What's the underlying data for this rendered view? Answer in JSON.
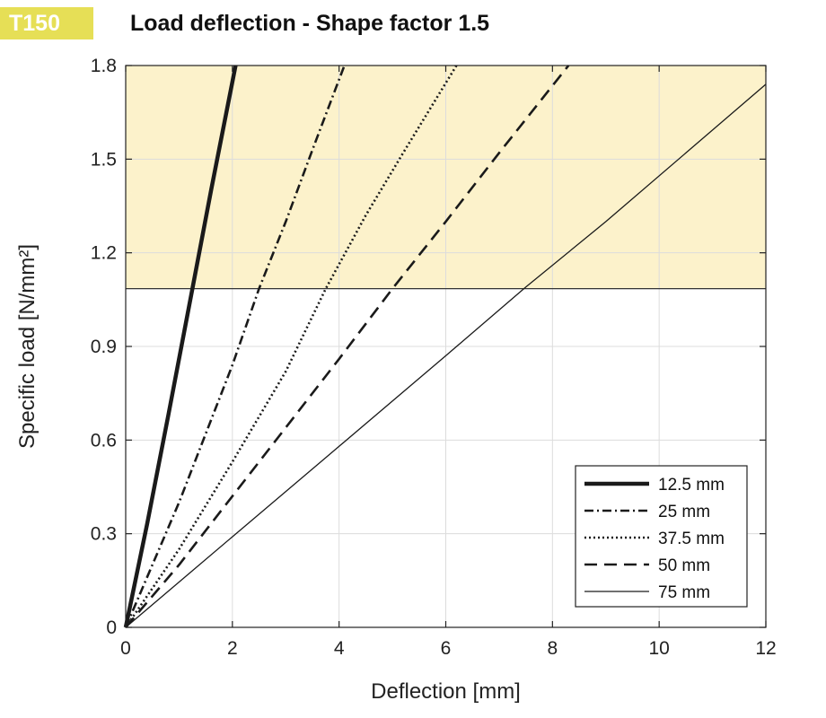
{
  "header": {
    "badge": "T150",
    "title": "Load deflection - Shape factor 1.5"
  },
  "chart_data": {
    "type": "line",
    "title": "Load deflection - Shape factor 1.5",
    "xlabel": "Deflection  [mm]",
    "ylabel": "Specific load [N/mm²]",
    "xlim": [
      0,
      12
    ],
    "ylim": [
      0,
      1.8
    ],
    "xticks": [
      0,
      2,
      4,
      6,
      8,
      10,
      12
    ],
    "yticks": [
      0,
      0.3,
      0.6,
      0.9,
      1.2,
      1.5,
      1.8
    ],
    "xtick_labels": [
      "0",
      "2",
      "4",
      "6",
      "8",
      "10",
      "12"
    ],
    "ytick_labels": [
      "0",
      "0.3",
      "0.6",
      "0.9",
      "1.2",
      "1.5",
      "1.8"
    ],
    "grid": true,
    "legend_position": "bottom-right",
    "highlight_band": {
      "y_from": 1.085,
      "y_to": 1.8,
      "color": "#fcf2cb"
    },
    "series": [
      {
        "name": "12.5 mm",
        "style": "solid-thick",
        "x": [
          0,
          0.4,
          0.8,
          1.25,
          1.6,
          2.06
        ],
        "y": [
          0,
          0.33,
          0.68,
          1.085,
          1.4,
          1.8
        ]
      },
      {
        "name": "25 mm",
        "style": "dash-dot",
        "x": [
          0,
          0.5,
          1.0,
          1.5,
          2.0,
          2.5,
          3.0,
          3.5,
          4.1
        ],
        "y": [
          0,
          0.2,
          0.4,
          0.62,
          0.84,
          1.085,
          1.3,
          1.53,
          1.8
        ]
      },
      {
        "name": "37.5 mm",
        "style": "dotted",
        "x": [
          0,
          1.0,
          2.0,
          3.0,
          3.75,
          4.5,
          5.2,
          6.2
        ],
        "y": [
          0,
          0.25,
          0.53,
          0.82,
          1.085,
          1.32,
          1.52,
          1.8
        ]
      },
      {
        "name": "50 mm",
        "style": "dashed",
        "x": [
          0,
          1.0,
          2.0,
          3.0,
          4.0,
          5.0,
          6.0,
          7.0,
          8.3
        ],
        "y": [
          0,
          0.2,
          0.42,
          0.64,
          0.86,
          1.085,
          1.3,
          1.52,
          1.8
        ]
      },
      {
        "name": "75 mm",
        "style": "solid-thin",
        "x": [
          0,
          2.0,
          4.0,
          6.0,
          7.5,
          9.0,
          10.5,
          12.0
        ],
        "y": [
          0,
          0.29,
          0.58,
          0.87,
          1.09,
          1.3,
          1.52,
          1.74
        ]
      }
    ]
  }
}
